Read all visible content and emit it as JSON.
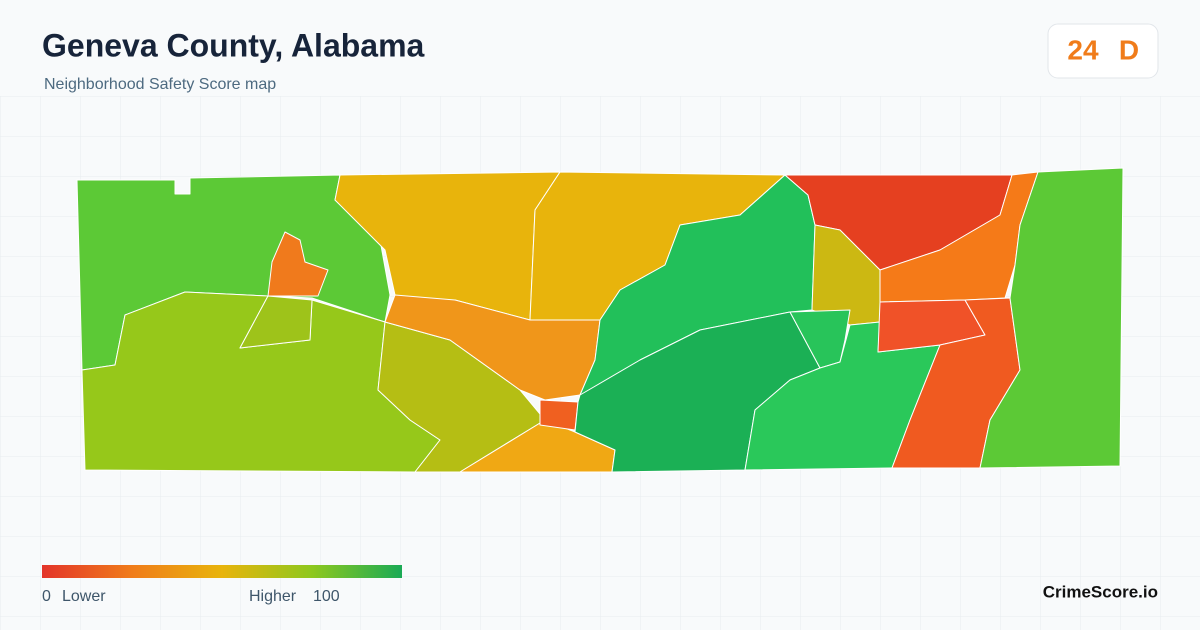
{
  "header": {
    "title": "Geneva County, Alabama",
    "subtitle": "Neighborhood Safety Score map"
  },
  "score": {
    "value": "24",
    "grade": "D"
  },
  "legend": {
    "min": "0",
    "min_label": "Lower",
    "max_label": "Higher",
    "max": "100"
  },
  "footer": {
    "brand": "CrimeScore.io"
  }
}
